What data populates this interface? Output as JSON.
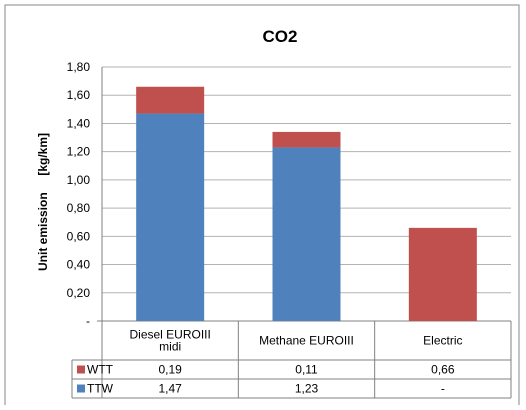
{
  "chart_data": {
    "type": "bar",
    "stacked": true,
    "title": "CO2",
    "ylabel": "Unit emission     [kg/km]",
    "xlabel": "",
    "categories": [
      [
        "Diesel EUROIII",
        "midi"
      ],
      [
        "Methane EUROIII"
      ],
      [
        "Electric"
      ]
    ],
    "ylim": [
      0,
      1.8
    ],
    "yticks": [
      0,
      0.2,
      0.4,
      0.6,
      0.8,
      1.0,
      1.2,
      1.4,
      1.6,
      1.8
    ],
    "ytick_labels": [
      "-",
      "0,20",
      "0,40",
      "0,60",
      "0,80",
      "1,00",
      "1,20",
      "1,40",
      "1,60",
      "1,80"
    ],
    "grid": true,
    "legend": "bottom-table",
    "series": [
      {
        "name": "TTW",
        "color": "#4f81bd",
        "values": [
          1.47,
          1.23,
          0
        ],
        "labels": [
          "1,47",
          "1,23",
          "-"
        ]
      },
      {
        "name": "WTT",
        "color": "#c0504d",
        "values": [
          0.19,
          0.11,
          0.66
        ],
        "labels": [
          "0,19",
          "0,11",
          "0,66"
        ]
      }
    ],
    "table_row_order": [
      1,
      0
    ]
  }
}
